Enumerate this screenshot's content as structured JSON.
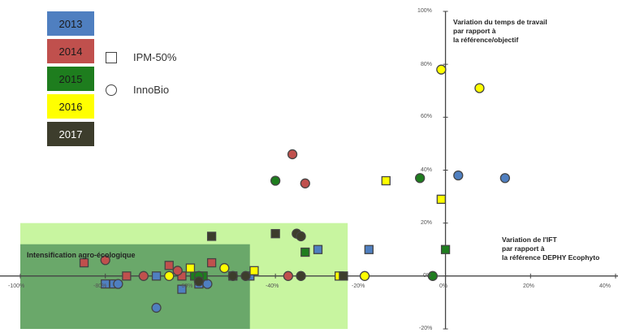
{
  "chart_data": {
    "type": "scatter",
    "xlim": [
      -100,
      40
    ],
    "ylim": [
      -20,
      100
    ],
    "x_ticks": [
      "-100%",
      "-80%",
      "-60%",
      "-40%",
      "-20%",
      "0%",
      "20%",
      "40%"
    ],
    "y_ticks": [
      "100%",
      "80%",
      "60%",
      "40%",
      "20%",
      "0%",
      "-20%"
    ],
    "year_legend": [
      {
        "label": "2013",
        "color": "#4f7fc0"
      },
      {
        "label": "2014",
        "color": "#c0504d"
      },
      {
        "label": "2015",
        "color": "#1e7d1e"
      },
      {
        "label": "2016",
        "color": "#ffff00"
      },
      {
        "label": "2017",
        "color": "#3d3d2c"
      }
    ],
    "shape_legend": [
      {
        "label": "IPM-50%",
        "shape": "square"
      },
      {
        "label": "InnoBio",
        "shape": "circle"
      }
    ],
    "y_axis_annotation": "Variation du temps de travail\npar rapport à\nla référence/objectif",
    "x_axis_annotation": "Variation de l'IFT\npar rapport à\nla référence DEPHY Ecophyto",
    "zone_label": "Intensification agro-écologique",
    "zones": [
      {
        "name": "light",
        "x": [
          -100,
          -23
        ],
        "y": [
          -20,
          20
        ],
        "color": "#c8f5a0"
      },
      {
        "name": "dark",
        "x": [
          -100,
          -46
        ],
        "y": [
          -20,
          12
        ],
        "color": "#6aa86a"
      }
    ],
    "series": [
      {
        "year": "2013",
        "points": [
          {
            "x": -78,
            "y": -3,
            "shape": "square"
          },
          {
            "x": -80,
            "y": -3,
            "shape": "square"
          },
          {
            "x": -68,
            "y": 0,
            "shape": "square"
          },
          {
            "x": -62,
            "y": -5,
            "shape": "square"
          },
          {
            "x": -58,
            "y": -3,
            "shape": "square"
          },
          {
            "x": -46,
            "y": 0,
            "shape": "square"
          },
          {
            "x": -30,
            "y": 10,
            "shape": "square"
          },
          {
            "x": -18,
            "y": 10,
            "shape": "square"
          },
          {
            "x": -77,
            "y": -3,
            "shape": "circle"
          },
          {
            "x": -68,
            "y": -12,
            "shape": "circle"
          },
          {
            "x": -56,
            "y": -3,
            "shape": "circle"
          },
          {
            "x": 3,
            "y": 38,
            "shape": "circle"
          },
          {
            "x": 14,
            "y": 37,
            "shape": "circle"
          }
        ]
      },
      {
        "year": "2014",
        "points": [
          {
            "x": -85,
            "y": 5,
            "shape": "square"
          },
          {
            "x": -75,
            "y": 0,
            "shape": "square"
          },
          {
            "x": -65,
            "y": 4,
            "shape": "square"
          },
          {
            "x": -62,
            "y": 0,
            "shape": "square"
          },
          {
            "x": -55,
            "y": 5,
            "shape": "square"
          },
          {
            "x": -50,
            "y": 0,
            "shape": "square"
          },
          {
            "x": -80,
            "y": 6,
            "shape": "circle"
          },
          {
            "x": -71,
            "y": 0,
            "shape": "circle"
          },
          {
            "x": -63,
            "y": 2,
            "shape": "circle"
          },
          {
            "x": -36,
            "y": 46,
            "shape": "circle"
          },
          {
            "x": -33,
            "y": 35,
            "shape": "circle"
          },
          {
            "x": -37,
            "y": 0,
            "shape": "circle"
          }
        ]
      },
      {
        "year": "2015",
        "points": [
          {
            "x": -59,
            "y": 0,
            "shape": "square"
          },
          {
            "x": -57,
            "y": 0,
            "shape": "square"
          },
          {
            "x": -33,
            "y": 9,
            "shape": "square"
          },
          {
            "x": 0,
            "y": 10,
            "shape": "square"
          },
          {
            "x": -58,
            "y": 0,
            "shape": "circle"
          },
          {
            "x": -40,
            "y": 36,
            "shape": "circle"
          },
          {
            "x": -6,
            "y": 37,
            "shape": "circle"
          },
          {
            "x": -3,
            "y": 0,
            "shape": "circle"
          }
        ]
      },
      {
        "year": "2016",
        "points": [
          {
            "x": -60,
            "y": 3,
            "shape": "square"
          },
          {
            "x": -45,
            "y": 2,
            "shape": "square"
          },
          {
            "x": -25,
            "y": 0,
            "shape": "square"
          },
          {
            "x": -14,
            "y": 36,
            "shape": "square"
          },
          {
            "x": -1,
            "y": 29,
            "shape": "square"
          },
          {
            "x": -65,
            "y": 0,
            "shape": "circle"
          },
          {
            "x": -52,
            "y": 3,
            "shape": "circle"
          },
          {
            "x": -19,
            "y": 0,
            "shape": "circle"
          },
          {
            "x": -1,
            "y": 78,
            "shape": "circle"
          },
          {
            "x": 8,
            "y": 71,
            "shape": "circle"
          }
        ]
      },
      {
        "year": "2017",
        "points": [
          {
            "x": -55,
            "y": 15,
            "shape": "square"
          },
          {
            "x": -40,
            "y": 16,
            "shape": "square"
          },
          {
            "x": -24,
            "y": 0,
            "shape": "square"
          },
          {
            "x": -35,
            "y": 16,
            "shape": "circle"
          },
          {
            "x": -34,
            "y": 15,
            "shape": "circle"
          },
          {
            "x": -47,
            "y": 0,
            "shape": "circle"
          },
          {
            "x": -50,
            "y": 0,
            "shape": "circle"
          },
          {
            "x": -34,
            "y": 0,
            "shape": "circle"
          },
          {
            "x": -58,
            "y": -2,
            "shape": "circle"
          }
        ]
      }
    ]
  }
}
